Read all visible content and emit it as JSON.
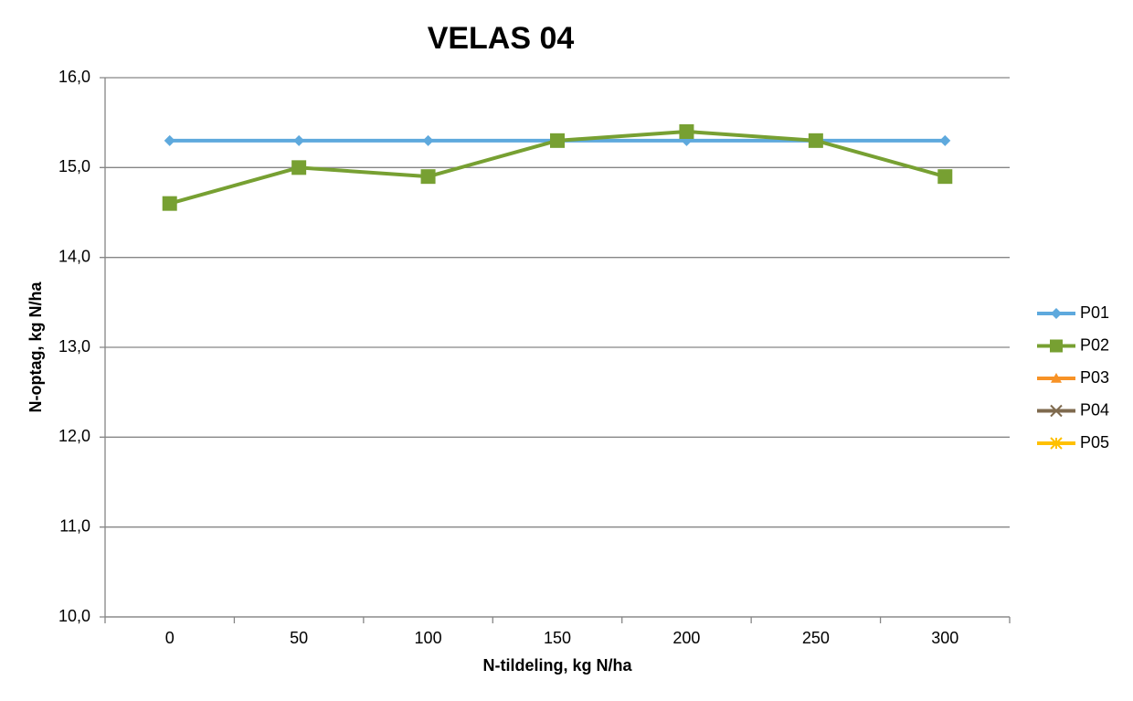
{
  "chart_data": {
    "type": "line",
    "title": "VELAS 04",
    "x_label": "N-tildeling, kg N/ha",
    "y_label": "N-optag, kg N/ha",
    "categories": [
      "0",
      "50",
      "100",
      "150",
      "200",
      "250",
      "300"
    ],
    "series": [
      {
        "name": "P01",
        "color": "#5ea9dd",
        "marker": "diamond",
        "values": [
          15.3,
          15.3,
          15.3,
          15.3,
          15.3,
          15.3,
          15.3
        ]
      },
      {
        "name": "P02",
        "color": "#77a032",
        "marker": "square",
        "values": [
          14.6,
          15.0,
          14.9,
          15.3,
          15.4,
          15.3,
          14.9
        ]
      },
      {
        "name": "P03",
        "color": "#f79226",
        "marker": "triangle",
        "values": [
          null,
          null,
          null,
          null,
          null,
          null,
          null
        ]
      },
      {
        "name": "P04",
        "color": "#7f6a4e",
        "marker": "x",
        "values": [
          null,
          null,
          null,
          null,
          null,
          null,
          null
        ]
      },
      {
        "name": "P05",
        "color": "#ffc000",
        "marker": "star",
        "values": [
          null,
          null,
          null,
          null,
          null,
          null,
          null
        ]
      }
    ],
    "ylim": [
      10,
      16
    ],
    "yticks": [
      {
        "value": 10,
        "label": "10,0"
      },
      {
        "value": 11,
        "label": "11,0"
      },
      {
        "value": 12,
        "label": "12,0"
      },
      {
        "value": 13,
        "label": "13,0"
      },
      {
        "value": 14,
        "label": "14,0"
      },
      {
        "value": 15,
        "label": "15,0"
      },
      {
        "value": 16,
        "label": "16,0"
      }
    ],
    "grid": true,
    "legend": "right"
  }
}
